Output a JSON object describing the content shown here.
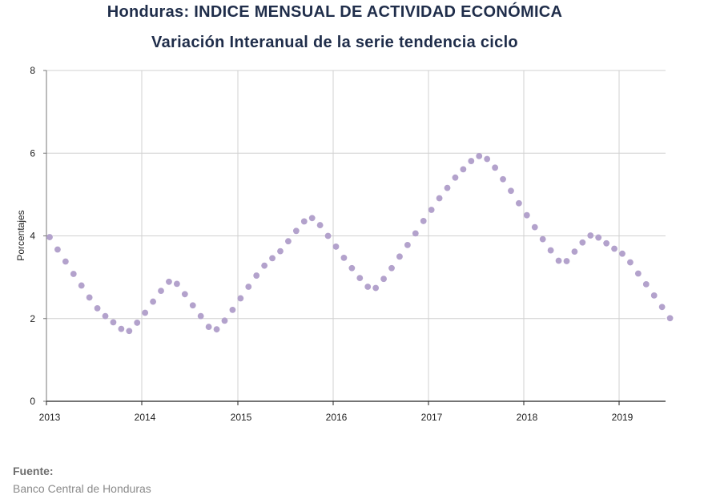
{
  "chart_data": {
    "type": "scatter",
    "title": "Honduras: INDICE MENSUAL DE ACTIVIDAD ECONÓMICA",
    "subtitle": "Variación Interanual de la serie tendencia ciclo",
    "xlabel": "",
    "ylabel": "Porcentajes",
    "ylim": [
      0,
      8
    ],
    "yticks": [
      "0",
      "2",
      "4",
      "6",
      "8"
    ],
    "xticks": [
      "2013",
      "2014",
      "2015",
      "2016",
      "2017",
      "2018",
      "2019"
    ],
    "grid": true,
    "marker_color": "#b3a2cc",
    "series": [
      {
        "values": [
          3.97,
          3.67,
          3.38,
          3.08,
          2.8,
          2.51,
          2.25,
          2.06,
          1.91,
          1.75,
          1.7,
          1.9,
          2.14,
          2.41,
          2.67,
          2.89,
          2.84,
          2.59,
          2.32,
          2.06,
          1.8,
          1.74,
          1.95,
          2.21,
          2.49,
          2.77,
          3.04,
          3.28,
          3.46,
          3.63,
          3.87,
          4.12,
          4.35,
          4.43,
          4.26,
          4.0,
          3.74,
          3.47,
          3.22,
          2.98,
          2.77,
          2.74,
          2.96,
          3.22,
          3.5,
          3.78,
          4.06,
          4.36,
          4.63,
          4.91,
          5.16,
          5.41,
          5.61,
          5.81,
          5.93,
          5.86,
          5.65,
          5.37,
          5.09,
          4.79,
          4.5,
          4.21,
          3.92,
          3.65,
          3.4,
          3.39,
          3.62,
          3.84,
          4.01,
          3.96,
          3.82,
          3.69,
          3.57,
          3.36,
          3.09,
          2.83,
          2.56,
          2.28,
          2.01
        ]
      }
    ]
  },
  "source": {
    "label": "Fuente:",
    "text": "Banco Central de Honduras"
  }
}
